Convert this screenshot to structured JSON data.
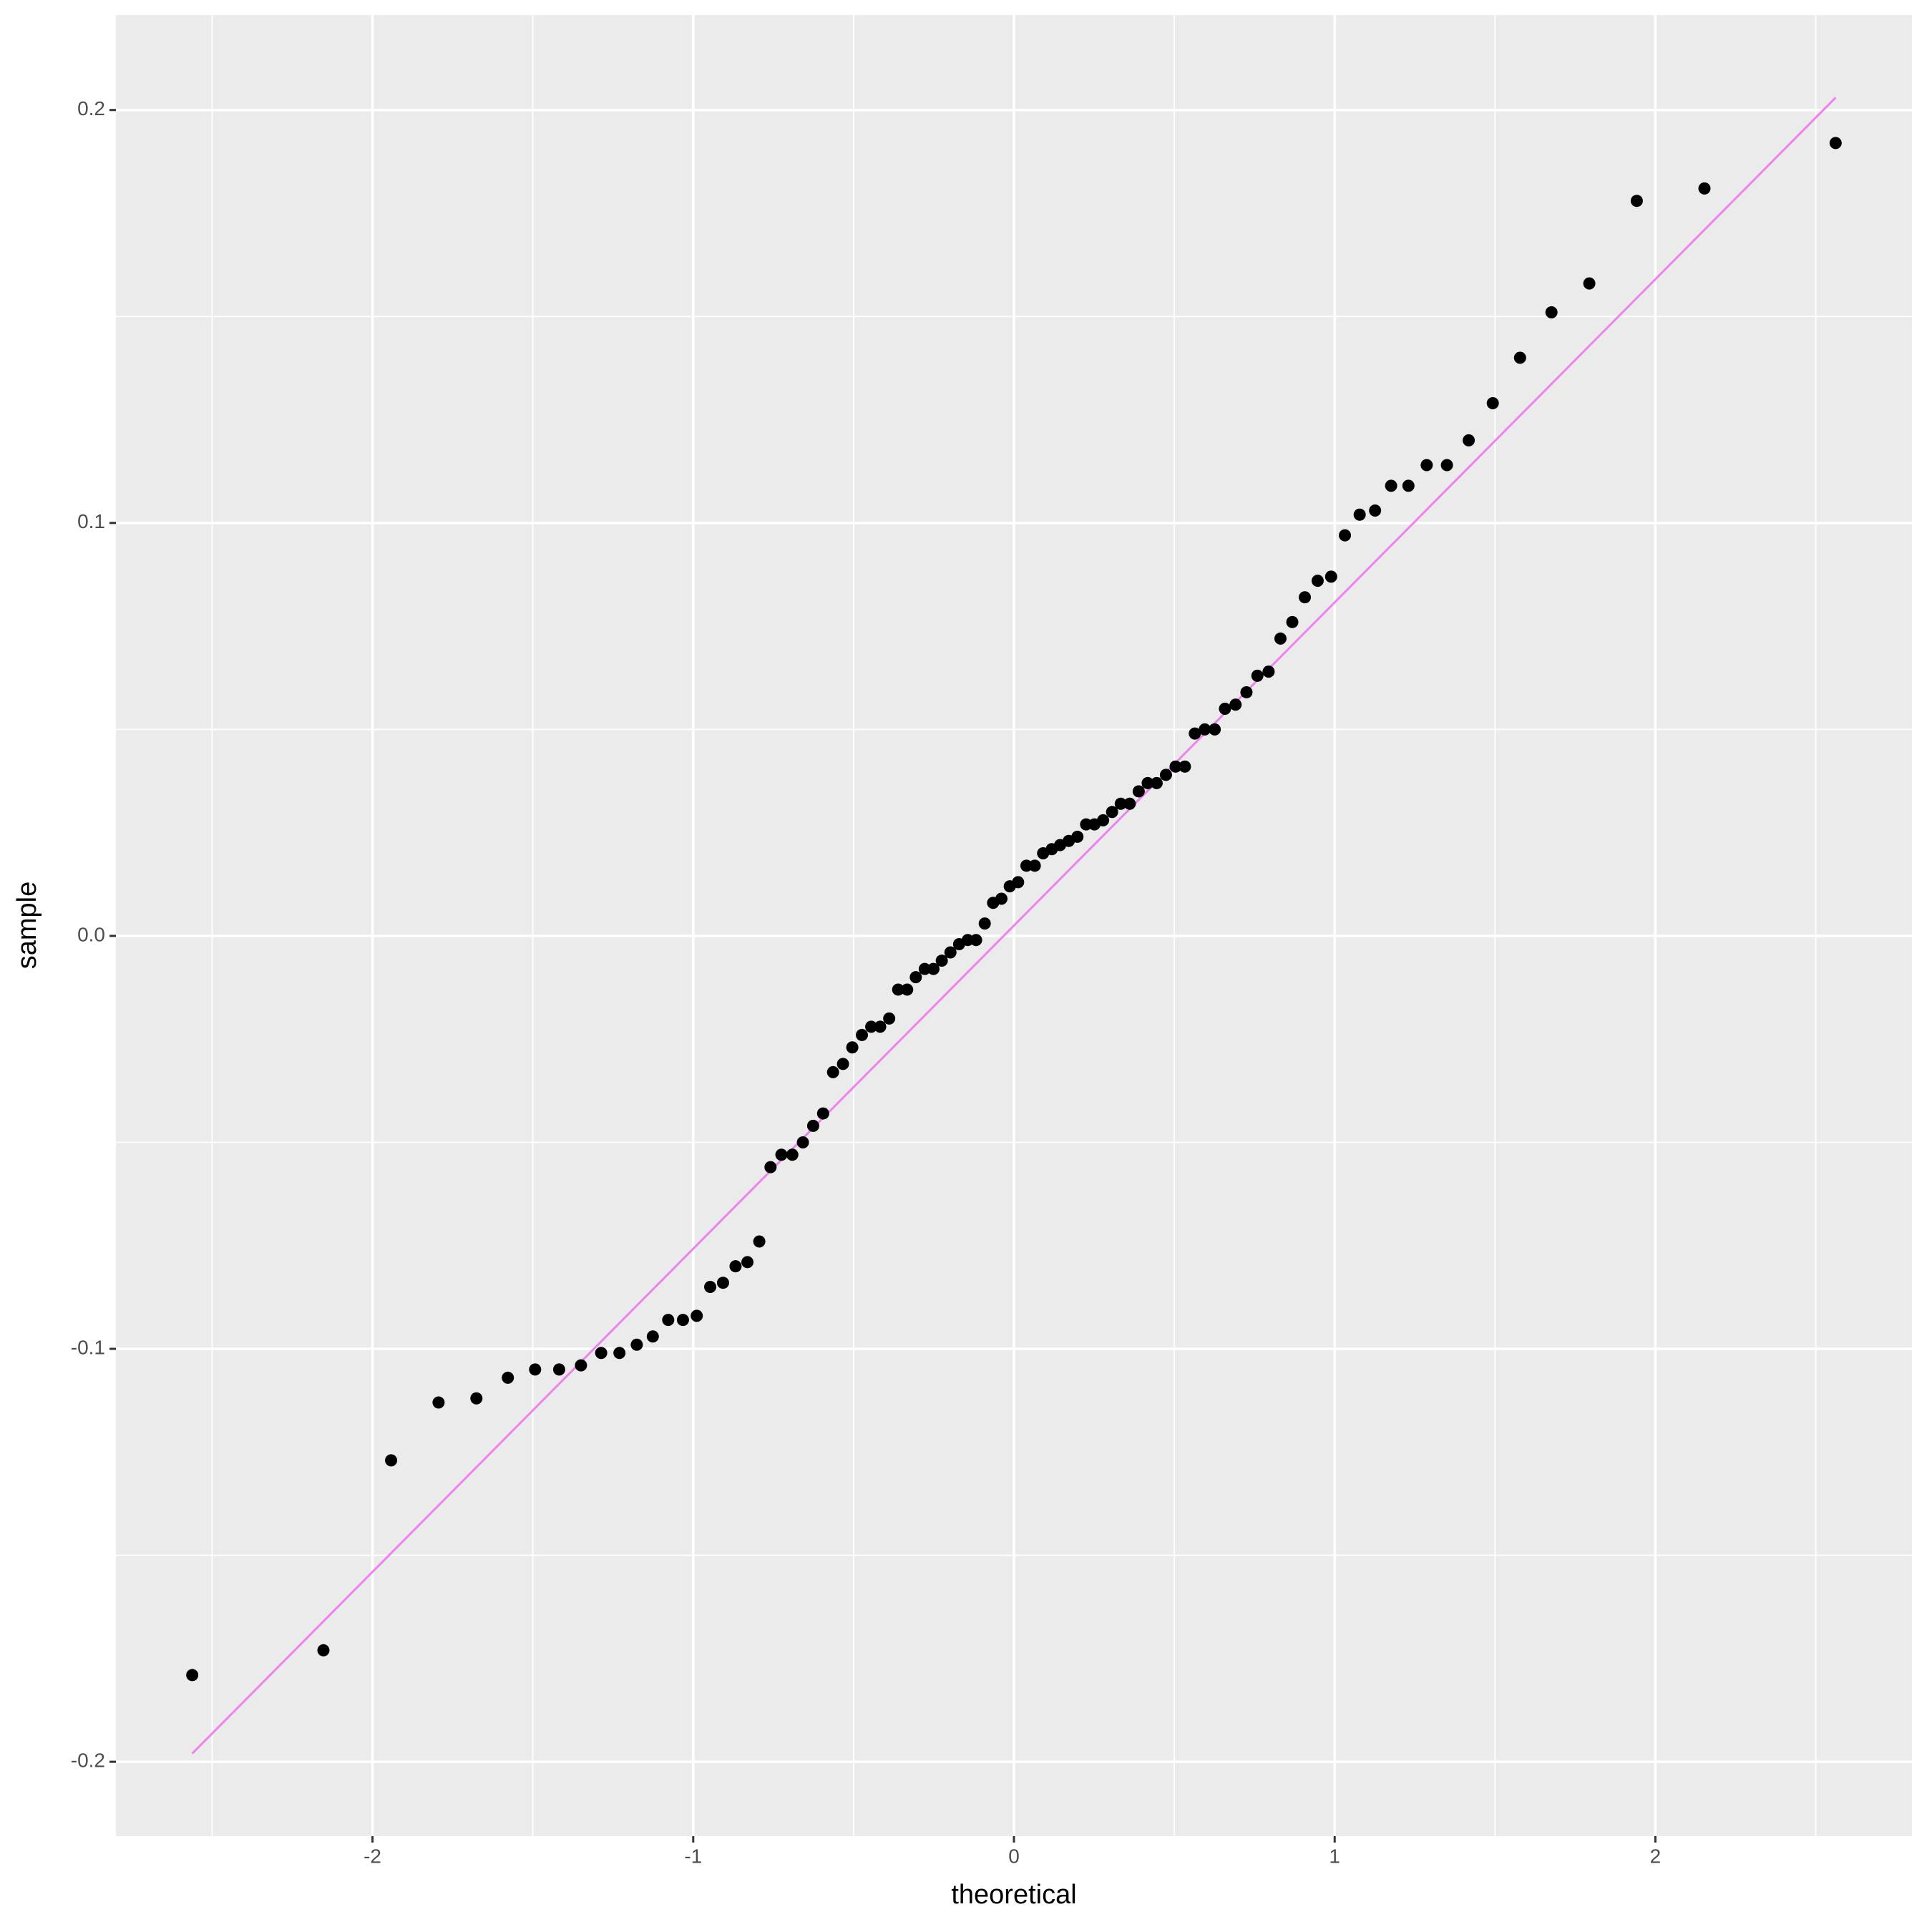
{
  "chart_data": {
    "type": "scatter",
    "x_label": "theoretical",
    "y_label": "sample",
    "x": [
      -2.562,
      -2.153,
      -1.942,
      -1.794,
      -1.676,
      -1.578,
      -1.493,
      -1.418,
      -1.35,
      -1.287,
      -1.23,
      -1.176,
      -1.126,
      -1.078,
      -1.032,
      -0.989,
      -0.947,
      -0.907,
      -0.868,
      -0.831,
      -0.794,
      -0.759,
      -0.725,
      -0.691,
      -0.658,
      -0.626,
      -0.595,
      -0.564,
      -0.533,
      -0.504,
      -0.474,
      -0.445,
      -0.417,
      -0.389,
      -0.361,
      -0.333,
      -0.306,
      -0.278,
      -0.251,
      -0.225,
      -0.198,
      -0.171,
      -0.144,
      -0.118,
      -0.091,
      -0.065,
      -0.039,
      -0.013,
      0.013,
      0.039,
      0.065,
      0.091,
      0.118,
      0.144,
      0.171,
      0.198,
      0.225,
      0.251,
      0.278,
      0.306,
      0.333,
      0.361,
      0.389,
      0.417,
      0.445,
      0.474,
      0.504,
      0.533,
      0.564,
      0.595,
      0.626,
      0.658,
      0.691,
      0.725,
      0.759,
      0.794,
      0.831,
      0.868,
      0.907,
      0.947,
      0.989,
      1.032,
      1.078,
      1.126,
      1.176,
      1.23,
      1.287,
      1.35,
      1.418,
      1.493,
      1.578,
      1.676,
      1.794,
      1.942,
      2.153,
      2.562
    ],
    "values": [
      -0.179,
      -0.173,
      -0.127,
      -0.113,
      -0.112,
      -0.107,
      -0.105,
      -0.105,
      -0.104,
      -0.101,
      -0.101,
      -0.099,
      -0.097,
      -0.093,
      -0.093,
      -0.092,
      -0.085,
      -0.084,
      -0.08,
      -0.079,
      -0.074,
      -0.056,
      -0.053,
      -0.053,
      -0.05,
      -0.046,
      -0.043,
      -0.033,
      -0.031,
      -0.027,
      -0.024,
      -0.022,
      -0.022,
      -0.02,
      -0.013,
      -0.013,
      -0.01,
      -0.008,
      -0.008,
      -0.006,
      -0.004,
      -0.002,
      -0.001,
      -0.001,
      0.003,
      0.008,
      0.009,
      0.012,
      0.013,
      0.017,
      0.017,
      0.02,
      0.021,
      0.022,
      0.023,
      0.024,
      0.027,
      0.027,
      0.028,
      0.03,
      0.032,
      0.032,
      0.035,
      0.037,
      0.037,
      0.039,
      0.041,
      0.041,
      0.049,
      0.05,
      0.05,
      0.055,
      0.056,
      0.059,
      0.063,
      0.064,
      0.072,
      0.076,
      0.082,
      0.086,
      0.087,
      0.097,
      0.102,
      0.103,
      0.109,
      0.109,
      0.114,
      0.114,
      0.12,
      0.129,
      0.14,
      0.151,
      0.158,
      0.178,
      0.181,
      0.192
    ],
    "color": "#000000",
    "reference_line": {
      "x": [
        -2.562,
        2.562
      ],
      "y": [
        -0.198,
        0.203
      ],
      "color": "#ee82ee"
    },
    "xlim": [
      -2.8,
      2.8
    ],
    "ylim": [
      -0.218,
      0.223
    ],
    "xticks": [
      -2,
      -1,
      0,
      1,
      2
    ],
    "yticks": [
      -0.2,
      -0.1,
      {
        "value": 0,
        "label": "0.0"
      },
      0.1,
      0.2
    ],
    "grid": true
  }
}
